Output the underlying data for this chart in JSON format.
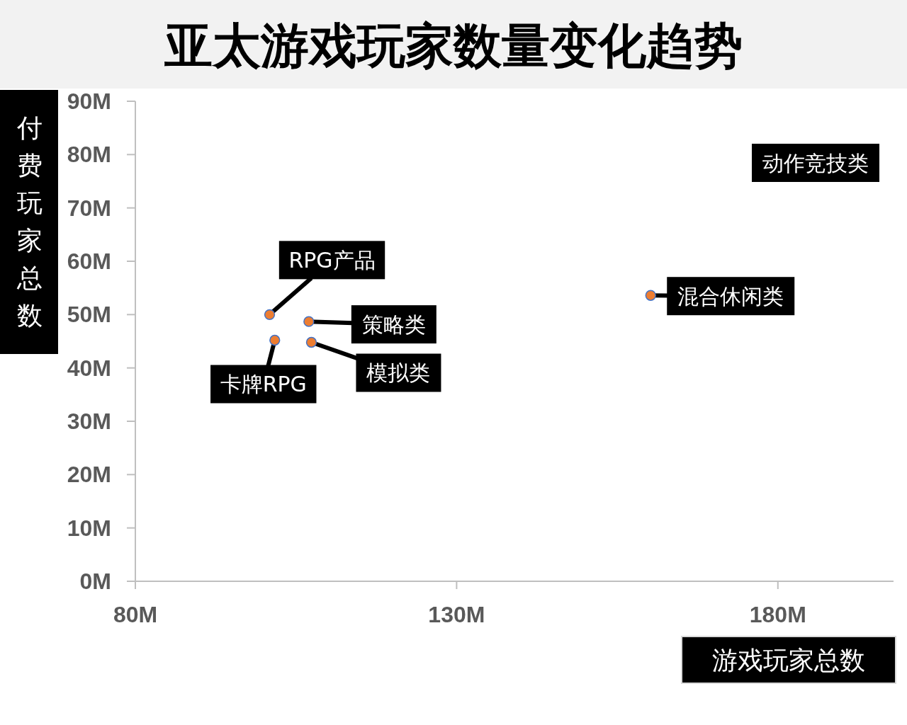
{
  "chart_data": {
    "type": "scatter",
    "title": "亚太游戏玩家数量变化趋势",
    "xlabel": "游戏玩家总数",
    "ylabel": "付费玩家总数",
    "x": [
      100.9,
      101.7,
      107,
      107.4,
      160.2
    ],
    "values": [
      50,
      45.2,
      48.7,
      44.8,
      53.6
    ],
    "color": "#ed7d31",
    "marker": "circle",
    "xlim": [
      80,
      198
    ],
    "xticks": [
      {
        "value": 80,
        "label": "80M"
      },
      {
        "value": 130,
        "label": "130M"
      },
      {
        "value": 180,
        "label": "180M"
      }
    ],
    "ylim": [
      0,
      90
    ],
    "yticks": [
      {
        "value": 0,
        "label": "0M"
      },
      {
        "value": 10,
        "label": "10M"
      },
      {
        "value": 20,
        "label": "20M"
      },
      {
        "value": 30,
        "label": "30M"
      },
      {
        "value": 40,
        "label": "40M"
      },
      {
        "value": 50,
        "label": "50M"
      },
      {
        "value": 60,
        "label": "60M"
      },
      {
        "value": 70,
        "label": "70M"
      },
      {
        "value": 80,
        "label": "80M"
      },
      {
        "value": 90,
        "label": "90M"
      }
    ],
    "annotations": [
      {
        "text": "RPG产品",
        "x": 100.9,
        "y": 50
      },
      {
        "text": "卡牌RPG",
        "x": 101.7,
        "y": 45.2
      },
      {
        "text": "策略类",
        "x": 107,
        "y": 48.7
      },
      {
        "text": "模拟类",
        "x": 107.4,
        "y": 44.8
      },
      {
        "text": "混合休闲类",
        "x": 160.2,
        "y": 53.6
      },
      "动作竞技类"
    ]
  }
}
